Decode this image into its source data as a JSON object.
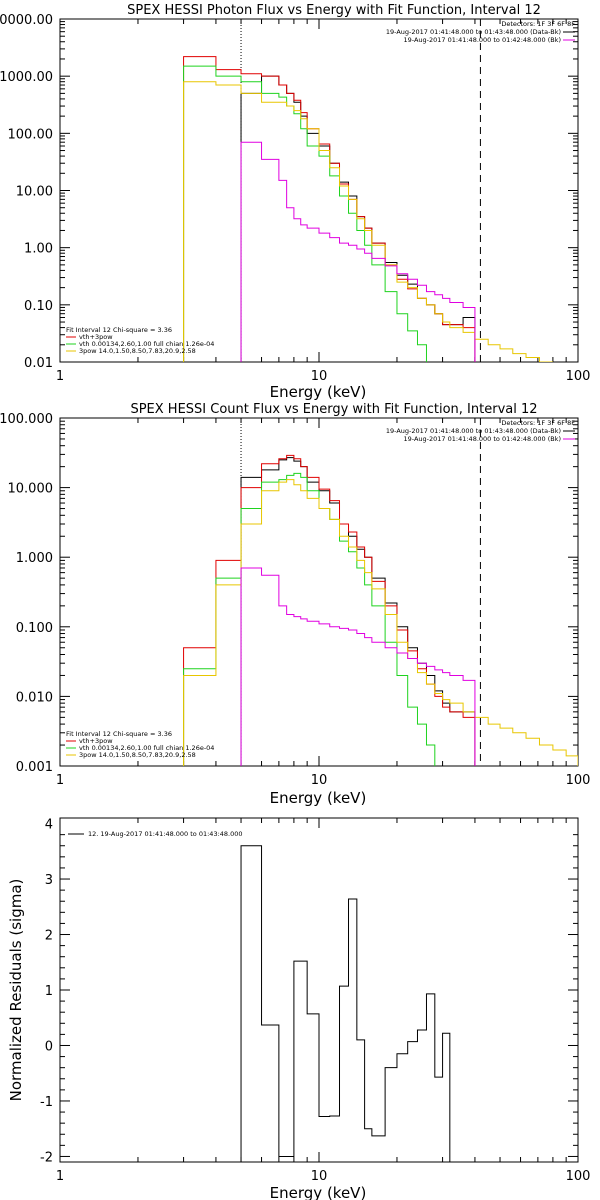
{
  "page": {
    "width": 600,
    "height": 1200
  },
  "colors": {
    "black": "#000000",
    "red": "#e00000",
    "green": "#1fd31f",
    "yellow": "#e8c600",
    "magenta": "#e000e0"
  },
  "chart_data": [
    {
      "type": "line",
      "title": "SPEX HESSI Photon Flux vs Energy with Fit Function, Interval 12",
      "xlabel": "Energy (keV)",
      "ylabel": "",
      "xscale": "log",
      "yscale": "log",
      "xlim": [
        1,
        100
      ],
      "ylim": [
        0.01,
        10000
      ],
      "xticks": [
        "1",
        "10",
        "100"
      ],
      "yticks": [
        "0.01",
        "0.10",
        "1.00",
        "10.00",
        "100.00",
        "1000.00",
        "10000.00"
      ],
      "yticks_values": [
        0.01,
        0.1,
        1,
        10,
        100,
        1000,
        10000
      ],
      "vlines": [
        {
          "x": 5,
          "style": "dotted"
        },
        {
          "x": 42,
          "style": "dashed"
        }
      ],
      "legend_tr": {
        "header": "Detectors: 1F 3F 6F 8F",
        "entries": [
          {
            "text": "19-Aug-2017 01:41:48.000 to 01:43:48.000 (Data-Bk)",
            "color": "#000000"
          },
          {
            "text": "19-Aug-2017 01:41:48.000 to 01:42:48.000 (Bk)",
            "color": "#e000e0"
          }
        ]
      },
      "legend_bl": [
        {
          "text": "Fit Interval 12    Chi-square = 3.36",
          "color": null
        },
        {
          "text": "vth+3pow",
          "color": "#e00000"
        },
        {
          "text": "vth 0.00134,2.60,1.00  full chian 1.26e-04",
          "color": "#1fd31f"
        },
        {
          "text": "3pow 14.0,1.50,8.50,7.83,20.9,2.58",
          "color": "#e8c600"
        }
      ],
      "bin_edges": [
        3,
        4,
        5,
        6,
        7,
        7.5,
        8,
        8.5,
        9,
        10,
        11,
        12,
        13,
        14,
        15,
        16,
        18,
        20,
        22,
        24,
        26,
        28,
        30,
        32,
        36,
        40,
        45,
        50,
        56,
        63,
        71,
        80,
        90,
        100
      ],
      "series": [
        {
          "name": "Data-Bk",
          "color": "#000000",
          "values": [
            null,
            null,
            500,
            1000,
            700,
            500,
            350,
            200,
            100,
            60,
            30,
            14,
            8,
            3.5,
            2.2,
            1.2,
            0.55,
            0.33,
            0.23,
            0.13,
            0.1,
            0.07,
            0.045,
            0.045,
            0.06,
            null,
            null,
            null,
            null,
            null,
            null,
            null,
            null
          ]
        },
        {
          "name": "vth+3pow",
          "color": "#e00000",
          "values": [
            2200,
            1300,
            1100,
            1000,
            700,
            500,
            380,
            230,
            120,
            65,
            30,
            13,
            7,
            3.5,
            2.2,
            1.2,
            0.5,
            0.28,
            0.19,
            0.13,
            0.1,
            0.07,
            0.045,
            0.045,
            0.04,
            null,
            null,
            null,
            null,
            null,
            null,
            null,
            null
          ]
        },
        {
          "name": "vth",
          "color": "#1fd31f",
          "values": [
            1500,
            1000,
            800,
            500,
            430,
            300,
            220,
            120,
            60,
            40,
            18,
            8,
            4,
            2,
            1.1,
            0.5,
            0.17,
            0.07,
            0.035,
            0.02,
            null,
            null,
            null,
            null,
            null,
            null,
            null,
            null,
            null,
            null,
            null,
            null,
            null
          ]
        },
        {
          "name": "3pow",
          "color": "#e8c600",
          "values": [
            800,
            700,
            500,
            350,
            350,
            300,
            250,
            180,
            120,
            50,
            25,
            12,
            7,
            3.2,
            2,
            1.1,
            0.5,
            0.25,
            0.2,
            0.13,
            0.1,
            0.07,
            0.05,
            0.04,
            0.033,
            0.025,
            0.02,
            0.017,
            0.014,
            0.012,
            0.01,
            null,
            null
          ]
        },
        {
          "name": "Bk",
          "color": "#e000e0",
          "values": [
            null,
            null,
            70,
            35,
            15,
            5,
            3.2,
            2.5,
            2.2,
            1.8,
            1.5,
            1.2,
            1.1,
            0.95,
            0.8,
            0.65,
            0.48,
            0.35,
            0.28,
            0.22,
            0.17,
            0.15,
            0.13,
            0.11,
            0.09,
            null,
            null,
            null,
            null,
            null,
            null,
            null,
            null
          ]
        }
      ]
    },
    {
      "type": "line",
      "title": "SPEX HESSI Count Flux vs Energy with Fit Function, Interval 12",
      "xlabel": "Energy (keV)",
      "ylabel": "",
      "xscale": "log",
      "yscale": "log",
      "xlim": [
        1,
        100
      ],
      "ylim": [
        0.001,
        100
      ],
      "xticks": [
        "1",
        "10",
        "100"
      ],
      "yticks": [
        "0.001",
        "0.010",
        "0.100",
        "1.000",
        "10.000",
        "100.000"
      ],
      "yticks_values": [
        0.001,
        0.01,
        0.1,
        1,
        10,
        100
      ],
      "vlines": [
        {
          "x": 5,
          "style": "dotted"
        },
        {
          "x": 42,
          "style": "dashed"
        }
      ],
      "legend_tr": {
        "header": "Detectors: 1F 3F 6F 8F",
        "entries": [
          {
            "text": "19-Aug-2017 01:41:48.000 to 01:43:48.000 (Data-Bk)",
            "color": "#000000"
          },
          {
            "text": "19-Aug-2017 01:41:48.000 to 01:42:48.000 (Bk)",
            "color": "#e000e0"
          }
        ]
      },
      "legend_bl": [
        {
          "text": "Fit Interval 12    Chi-square = 3.36",
          "color": null
        },
        {
          "text": "vth+3pow",
          "color": "#e00000"
        },
        {
          "text": "vth 0.00134,2.60,1.00  full chian 1.26e-04",
          "color": "#1fd31f"
        },
        {
          "text": "3pow 14.0,1.50,8.50,7.83,20.9,2.58",
          "color": "#e8c600"
        }
      ],
      "bin_edges": [
        3,
        4,
        5,
        6,
        7,
        7.5,
        8,
        8.5,
        9,
        10,
        11,
        12,
        13,
        14,
        15,
        16,
        18,
        20,
        22,
        24,
        26,
        28,
        30,
        32,
        36,
        40,
        45,
        50,
        56,
        63,
        71,
        80,
        90,
        100
      ],
      "series": [
        {
          "name": "Data-Bk",
          "color": "#000000",
          "values": [
            null,
            null,
            14,
            18,
            25,
            27,
            24,
            20,
            12,
            9,
            6,
            3,
            2,
            1.3,
            1,
            0.5,
            0.22,
            0.1,
            0.05,
            0.03,
            0.02,
            0.012,
            0.008,
            0.006,
            0.006,
            null,
            null,
            null,
            null,
            null,
            null,
            null,
            null
          ]
        },
        {
          "name": "vth+3pow",
          "color": "#e00000",
          "values": [
            0.05,
            0.9,
            10,
            22,
            26,
            29,
            26,
            20,
            14,
            9.5,
            6.5,
            3,
            2.3,
            1.4,
            1,
            0.45,
            0.2,
            0.09,
            0.045,
            0.025,
            0.015,
            0.01,
            0.007,
            0.006,
            0.005,
            null,
            null,
            null,
            null,
            null,
            null,
            null,
            null
          ]
        },
        {
          "name": "vth",
          "color": "#1fd31f",
          "values": [
            0.025,
            0.5,
            5,
            12,
            13,
            15,
            16,
            14,
            9,
            5,
            3.5,
            1.7,
            1.2,
            0.7,
            0.4,
            0.2,
            0.06,
            0.02,
            0.007,
            0.004,
            0.002,
            null,
            null,
            null,
            null,
            null,
            null,
            null,
            null,
            null,
            null,
            null,
            null
          ]
        },
        {
          "name": "3pow",
          "color": "#e8c600",
          "values": [
            0.02,
            0.4,
            3,
            9,
            12,
            13,
            11,
            9,
            7,
            5,
            3.5,
            2,
            1.4,
            0.9,
            0.6,
            0.35,
            0.15,
            0.06,
            0.035,
            0.022,
            0.015,
            0.011,
            0.009,
            0.008,
            0.006,
            0.005,
            0.004,
            0.0035,
            0.003,
            0.0025,
            0.002,
            0.0017,
            0.0014
          ]
        },
        {
          "name": "Bk",
          "color": "#e000e0",
          "values": [
            null,
            null,
            0.7,
            0.55,
            0.2,
            0.15,
            0.14,
            0.13,
            0.12,
            0.11,
            0.1,
            0.095,
            0.09,
            0.08,
            0.07,
            0.06,
            0.05,
            0.042,
            0.035,
            0.03,
            0.027,
            0.024,
            0.022,
            0.02,
            0.017,
            null,
            null,
            null,
            null,
            null,
            null,
            null,
            null
          ]
        }
      ]
    },
    {
      "type": "line",
      "title": "",
      "xlabel": "Energy (keV)",
      "ylabel": "Normalized Residuals (sigma)",
      "xscale": "log",
      "yscale": "linear",
      "xlim": [
        1,
        100
      ],
      "ylim": [
        -2.1,
        4.1
      ],
      "xticks": [
        "1",
        "10",
        "100"
      ],
      "yticks": [
        "-2",
        "-1",
        "0",
        "1",
        "2",
        "3",
        "4"
      ],
      "yticks_values": [
        -2,
        -1,
        0,
        1,
        2,
        3,
        4
      ],
      "legend": {
        "text": "12. 19-Aug-2017 01:41:48.000 to 01:43:48.000",
        "color": "#000000"
      },
      "bin_edges": [
        5,
        6,
        7,
        8,
        9,
        10,
        11,
        12,
        13,
        14,
        15,
        16,
        18,
        20,
        22,
        24,
        26,
        28,
        30,
        32,
        36,
        40,
        42
      ],
      "series": [
        {
          "name": "residuals",
          "color": "#000000",
          "values": [
            3.6,
            0.37,
            -2,
            1.52,
            0.57,
            -1.28,
            -1.27,
            1.07,
            2.64,
            0.1,
            -1.5,
            -1.63,
            -0.4,
            -0.15,
            0.07,
            0.28,
            0.93,
            -0.57,
            0.22,
            null,
            null,
            null
          ]
        }
      ]
    }
  ]
}
